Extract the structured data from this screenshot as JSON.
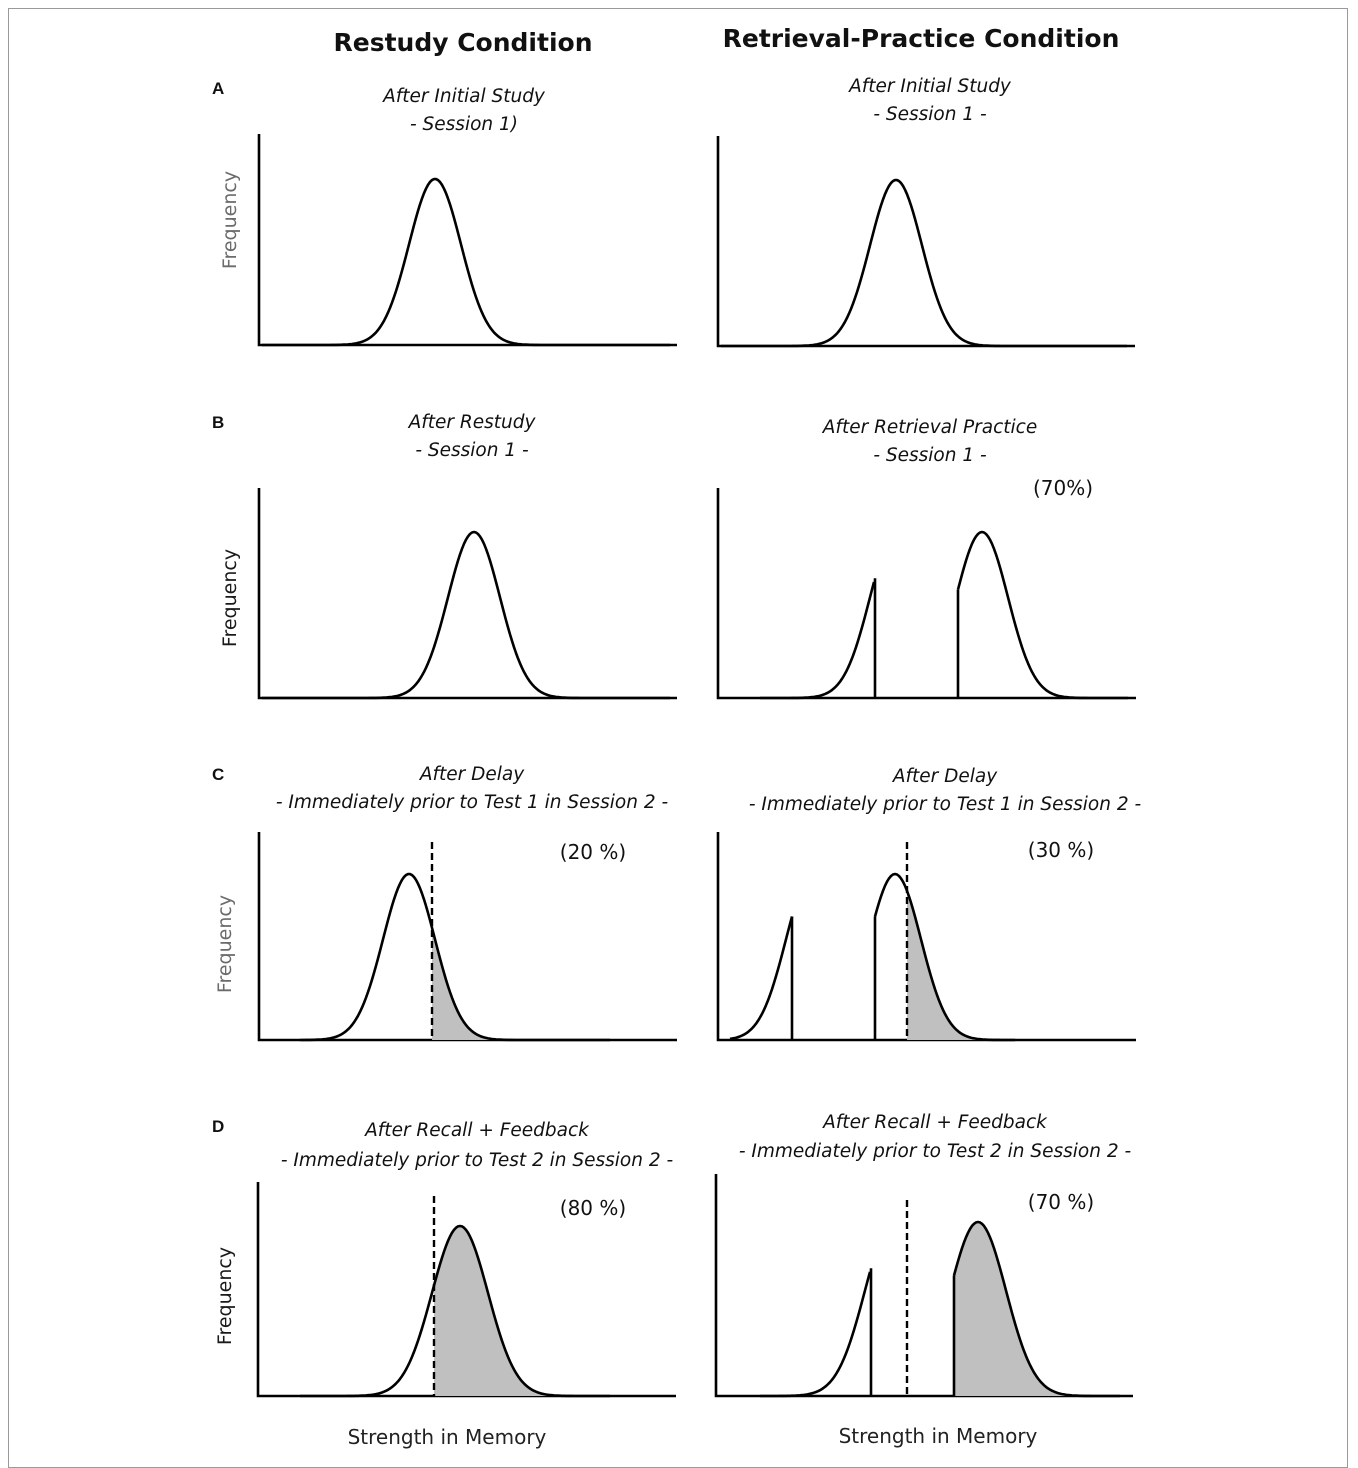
{
  "column_headers": {
    "restudy": "Restudy Condition",
    "retrieval": "Retrieval-Practice Condition"
  },
  "x_axis_label": "Strength in Memory",
  "y_axis_label": "Frequency",
  "rows": [
    {
      "letter": "A",
      "restudy": {
        "title1": "After Initial Study",
        "title2": "- Session 1)",
        "percent": ""
      },
      "retrieval": {
        "title1": "After Initial Study",
        "title2": "- Session 1 -",
        "percent": ""
      }
    },
    {
      "letter": "B",
      "restudy": {
        "title1": "After Restudy",
        "title2": "- Session 1 -",
        "percent": ""
      },
      "retrieval": {
        "title1": "After Retrieval Practice",
        "title2": "- Session 1 -",
        "percent": "(70%)"
      }
    },
    {
      "letter": "C",
      "restudy": {
        "title1": "After Delay",
        "title2": "- Immediately prior to Test 1 in Session 2 -",
        "percent": "(20 %)"
      },
      "retrieval": {
        "title1": "After Delay",
        "title2": "- Immediately prior to Test 1 in Session 2 -",
        "percent": "(30 %)"
      }
    },
    {
      "letter": "D",
      "restudy": {
        "title1": "After Recall + Feedback",
        "title2": "- Immediately prior to Test 2 in Session 2 -",
        "percent": "(80 %)"
      },
      "retrieval": {
        "title1": "After Recall + Feedback",
        "title2": "- Immediately prior to Test 2 in Session 2 -",
        "percent": "(70 %)"
      }
    }
  ],
  "colors": {
    "shading": "#c0c0c0",
    "line": "#000000",
    "y_label_gray": "#6b6b6b",
    "y_label_dark": "#1a1a1a"
  }
}
